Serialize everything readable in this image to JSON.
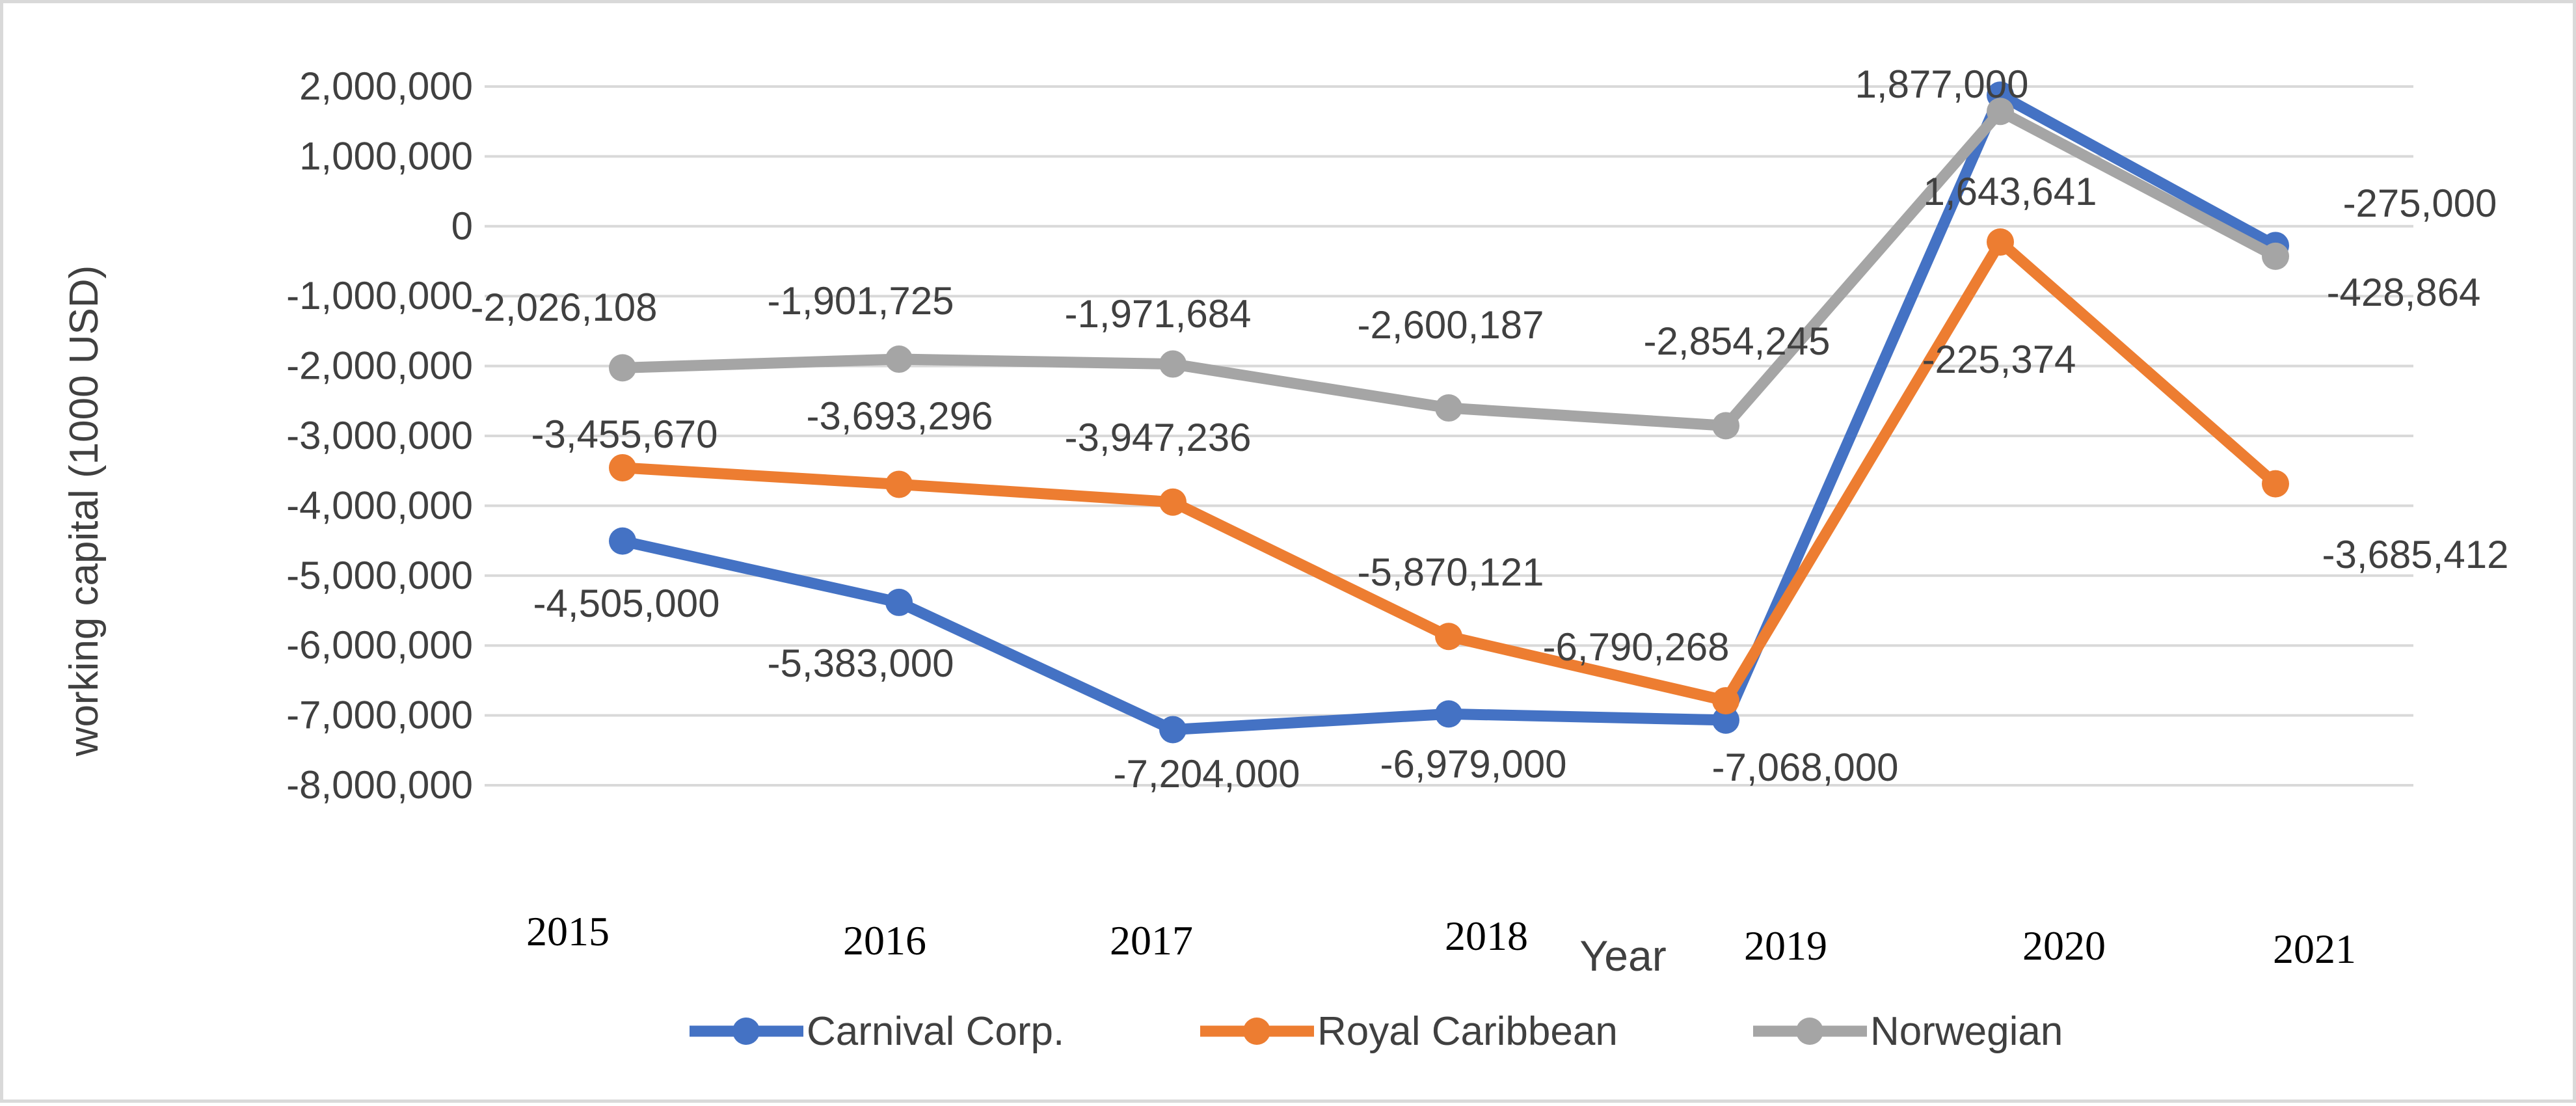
{
  "chart_data": {
    "type": "line",
    "title": "",
    "xlabel": "Year",
    "ylabel": "working capital (1000 USD)",
    "categories": [
      "2015",
      "2016",
      "2017",
      "2018",
      "2019",
      "2020",
      "2021"
    ],
    "ylim": [
      -8000000,
      2000000
    ],
    "yticks": [
      2000000,
      1000000,
      0,
      -1000000,
      -2000000,
      -3000000,
      -4000000,
      -5000000,
      -6000000,
      -7000000,
      -8000000
    ],
    "ytick_labels": [
      "2,000,000",
      "1,000,000",
      "0",
      "-1,000,000",
      "-2,000,000",
      "-3,000,000",
      "-4,000,000",
      "-5,000,000",
      "-6,000,000",
      "-7,000,000",
      "-8,000,000"
    ],
    "grid": true,
    "legend_position": "bottom",
    "series": [
      {
        "name": "Carnival Corp.",
        "color": "#4472c4",
        "values": [
          -4505000,
          -5383000,
          -7204000,
          -6979000,
          -7068000,
          1877000,
          -275000
        ],
        "labels": [
          "-4,505,000",
          "-5,383,000",
          "-7,204,000",
          "-6,979,000",
          "-7,068,000",
          "1,877,000",
          "-275,000"
        ]
      },
      {
        "name": "Royal Caribbean",
        "color": "#ed7d31",
        "values": [
          -3455670,
          -3693296,
          -3947236,
          -5870121,
          -6790268,
          -225374,
          -3685412
        ],
        "labels": [
          "-3,455,670",
          "-3,693,296",
          "-3,947,236",
          "-5,870,121",
          "-6,790,268",
          "-225,374",
          "-3,685,412"
        ]
      },
      {
        "name": "Norwegian",
        "color": "#a5a5a5",
        "values": [
          -2026108,
          -1901725,
          -1971684,
          -2600187,
          -2854245,
          1643641,
          -428864
        ],
        "labels": [
          "-2,026,108",
          "-1,901,725",
          "-1,971,684",
          "-2,600,187",
          "-2,854,245",
          "1,643,641",
          "-428,864"
        ]
      }
    ]
  }
}
